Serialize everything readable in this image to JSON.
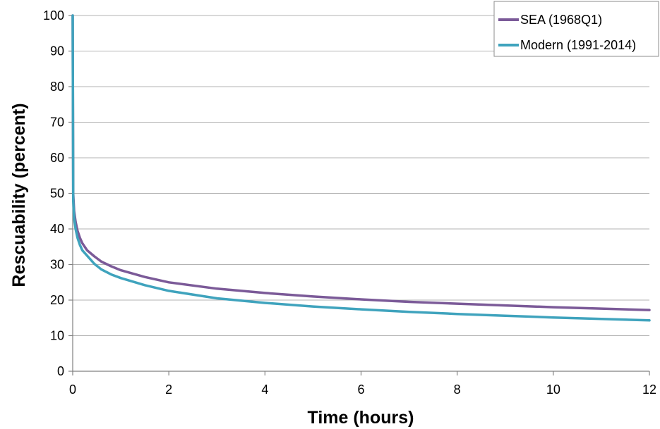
{
  "chart_data": {
    "type": "line",
    "title": "",
    "xlabel": "Time (hours)",
    "ylabel": "Rescuability (percent)",
    "xlim": [
      0,
      12
    ],
    "ylim": [
      0,
      100
    ],
    "xticks": [
      0,
      2,
      4,
      6,
      8,
      10,
      12
    ],
    "yticks": [
      0,
      10,
      20,
      30,
      40,
      50,
      60,
      70,
      80,
      90,
      100
    ],
    "grid": true,
    "legend": "top-right",
    "series": [
      {
        "name": "SEA (1968Q1)",
        "color": "#7b5a98",
        "x": [
          0,
          0.01,
          0.03,
          0.06,
          0.1,
          0.15,
          0.2,
          0.3,
          0.45,
          0.6,
          0.8,
          1,
          1.5,
          2,
          3,
          4,
          5,
          6,
          7,
          8,
          9,
          10,
          11,
          12
        ],
        "y": [
          100,
          50,
          45,
          42,
          39.5,
          37.5,
          36,
          34,
          32.3,
          30.8,
          29.5,
          28.4,
          26.5,
          25,
          23.2,
          22,
          21,
          20.2,
          19.5,
          19,
          18.5,
          18,
          17.6,
          17.2
        ]
      },
      {
        "name": "Modern (1991-2014)",
        "color": "#3fa3bd",
        "x": [
          0,
          0.01,
          0.03,
          0.06,
          0.1,
          0.15,
          0.2,
          0.3,
          0.45,
          0.6,
          0.8,
          1,
          1.5,
          2,
          3,
          4,
          5,
          6,
          7,
          8,
          9,
          10,
          11,
          12
        ],
        "y": [
          100,
          48,
          43,
          40,
          37.5,
          35.5,
          34,
          32.5,
          30.2,
          28.6,
          27.2,
          26.2,
          24.2,
          22.6,
          20.5,
          19.2,
          18.2,
          17.4,
          16.7,
          16.1,
          15.6,
          15.1,
          14.7,
          14.3
        ]
      }
    ]
  }
}
